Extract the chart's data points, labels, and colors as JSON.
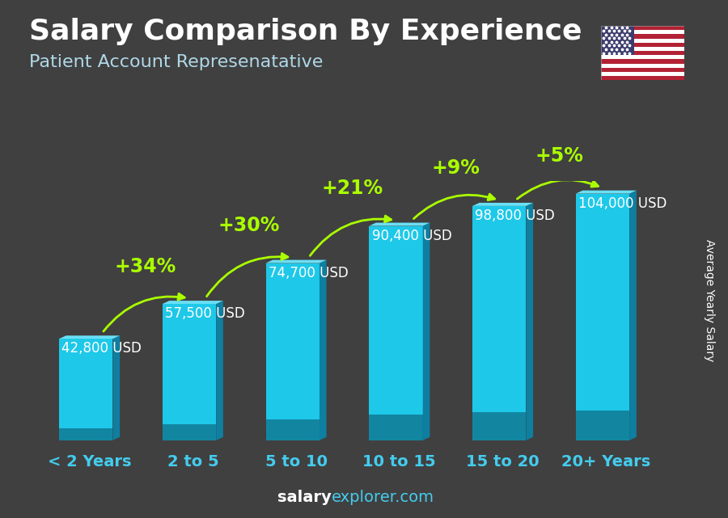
{
  "title": "Salary Comparison By Experience",
  "subtitle": "Patient Account Represenatative",
  "categories": [
    "< 2 Years",
    "2 to 5",
    "5 to 10",
    "10 to 15",
    "15 to 20",
    "20+ Years"
  ],
  "values": [
    42800,
    57500,
    74700,
    90400,
    98800,
    104000
  ],
  "labels": [
    "42,800 USD",
    "57,500 USD",
    "74,700 USD",
    "90,400 USD",
    "98,800 USD",
    "104,000 USD"
  ],
  "pct_changes": [
    "+34%",
    "+30%",
    "+21%",
    "+9%",
    "+5%"
  ],
  "c_front": "#1ec8e8",
  "c_top": "#6ae0f5",
  "c_side": "#0e7fa0",
  "c_dark_bottom": "#0a5a72",
  "bg_color": "#404040",
  "title_color": "#ffffff",
  "subtitle_color": "#b0d8e8",
  "label_color": "#ffffff",
  "pct_color": "#aaff00",
  "xcat_color": "#44ccee",
  "ylabel_text": "Average Yearly Salary",
  "title_fontsize": 26,
  "subtitle_fontsize": 16,
  "label_fontsize": 12,
  "pct_fontsize": 17,
  "xlabel_fontsize": 14,
  "ylabel_fontsize": 10
}
